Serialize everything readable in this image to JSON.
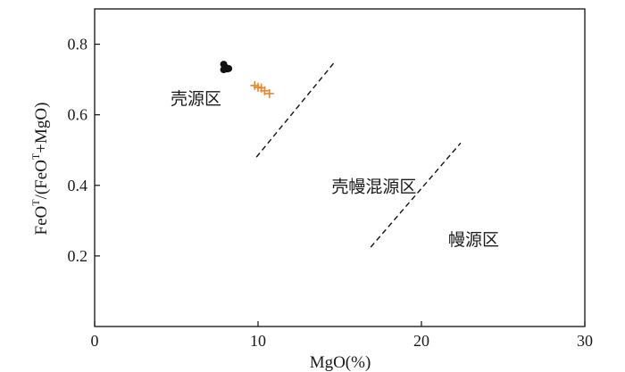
{
  "chart_data": {
    "type": "scatter",
    "title": "",
    "xlabel": "MgO(%)",
    "ylabel": {
      "part1": "FeO",
      "sup1": "T",
      "part2": "/(FeO",
      "sup2": "T",
      "part3": "+MgO)"
    },
    "xlim": [
      0,
      30
    ],
    "ylim": [
      0,
      0.9
    ],
    "x_ticks": [
      0,
      10,
      20,
      30
    ],
    "y_ticks": [
      0.2,
      0.4,
      0.6,
      0.8
    ],
    "x_tick_labels": [
      "0",
      "10",
      "20",
      "30"
    ],
    "y_tick_labels": [
      "0.2",
      "0.4",
      "0.6",
      "0.8"
    ],
    "grid": false,
    "series": [
      {
        "marker": "filled-circle",
        "color": "#111111",
        "points": [
          [
            7.9,
            0.743
          ],
          [
            8.0,
            0.735
          ],
          [
            8.1,
            0.73
          ],
          [
            7.9,
            0.728
          ],
          [
            8.2,
            0.731
          ]
        ]
      },
      {
        "marker": "plus",
        "color": "#e8862a",
        "points": [
          [
            9.8,
            0.683
          ],
          [
            10.0,
            0.678
          ],
          [
            10.2,
            0.676
          ],
          [
            10.4,
            0.668
          ],
          [
            10.7,
            0.66
          ]
        ]
      }
    ],
    "boundaries": [
      {
        "style": "dashed",
        "color": "#111111",
        "from": [
          9.9,
          0.48
        ],
        "to": [
          14.7,
          0.75
        ]
      },
      {
        "style": "dashed",
        "color": "#111111",
        "from": [
          16.9,
          0.225
        ],
        "to": [
          22.4,
          0.52
        ]
      }
    ],
    "region_labels": [
      {
        "text": "壳源区",
        "x": 6.2,
        "y": 0.63
      },
      {
        "text": "壳幔混源区",
        "x": 17.1,
        "y": 0.38
      },
      {
        "text": "幔源区",
        "x": 23.2,
        "y": 0.23
      }
    ]
  }
}
